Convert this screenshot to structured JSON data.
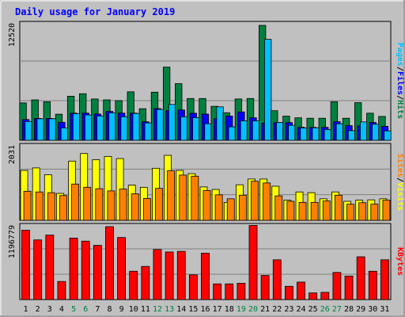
{
  "chart_data": [
    {
      "type": "bar",
      "panel": "top",
      "title": "Daily usage for January 2019",
      "ylabel_max": "12520",
      "categories": [
        "1",
        "2",
        "3",
        "4",
        "5",
        "6",
        "7",
        "8",
        "9",
        "10",
        "11",
        "12",
        "13",
        "14",
        "15",
        "16",
        "17",
        "18",
        "19",
        "20",
        "21",
        "22",
        "23",
        "24",
        "25",
        "26",
        "27",
        "28",
        "29",
        "30",
        "31"
      ],
      "weekend_days": [
        "5",
        "6",
        "12",
        "13",
        "19",
        "20",
        "26",
        "27"
      ],
      "ylim": [
        0,
        12520
      ],
      "series": [
        {
          "name": "Hits",
          "color": "#008040",
          "values": [
            4070,
            4400,
            4200,
            2840,
            4800,
            5070,
            4500,
            4400,
            4320,
            5280,
            3440,
            5240,
            7970,
            6170,
            4550,
            4550,
            3700,
            3000,
            4500,
            4550,
            12520,
            3220,
            2630,
            2450,
            2400,
            2400,
            4200,
            2400,
            4100,
            2950,
            2600
          ]
        },
        {
          "name": "Files",
          "color": "#0000ff",
          "values": [
            2260,
            2380,
            2380,
            1960,
            2960,
            2960,
            2860,
            3150,
            2960,
            2960,
            2020,
            3450,
            3240,
            3300,
            2940,
            2850,
            2350,
            2640,
            3090,
            2450,
            1880,
            1930,
            1930,
            1420,
            1410,
            1410,
            2030,
            1600,
            1580,
            1940,
            1520
          ]
        },
        {
          "name": "Pages",
          "color": "#00c0ff",
          "values": [
            2050,
            2340,
            2340,
            1350,
            2900,
            2760,
            2650,
            2990,
            2570,
            2920,
            1890,
            3360,
            3900,
            2560,
            2470,
            1800,
            3640,
            1460,
            2120,
            2120,
            11000,
            1950,
            1630,
            1340,
            1360,
            1170,
            1800,
            1050,
            2000,
            1750,
            1020
          ]
        }
      ]
    },
    {
      "type": "bar",
      "panel": "middle",
      "ylabel_max": "2031",
      "categories": [
        "1",
        "2",
        "3",
        "4",
        "5",
        "6",
        "7",
        "8",
        "9",
        "10",
        "11",
        "12",
        "13",
        "14",
        "15",
        "16",
        "17",
        "18",
        "19",
        "20",
        "21",
        "22",
        "23",
        "24",
        "25",
        "26",
        "27",
        "28",
        "29",
        "30",
        "31"
      ],
      "ylim": [
        0,
        2031
      ],
      "series": [
        {
          "name": "Visits",
          "color": "#ffff00",
          "values": [
            1390,
            1460,
            1270,
            750,
            1650,
            1860,
            1690,
            1780,
            1720,
            980,
            920,
            1450,
            1810,
            1390,
            1300,
            930,
            860,
            500,
            990,
            1150,
            1150,
            950,
            560,
            790,
            770,
            600,
            790,
            530,
            560,
            570,
            600
          ]
        },
        {
          "name": "Sites",
          "color": "#ff8000",
          "values": [
            810,
            790,
            770,
            690,
            1010,
            920,
            880,
            820,
            870,
            740,
            610,
            890,
            1380,
            1260,
            1230,
            830,
            710,
            600,
            700,
            1090,
            1040,
            680,
            530,
            500,
            500,
            540,
            700,
            450,
            490,
            450,
            560
          ]
        }
      ]
    },
    {
      "type": "bar",
      "panel": "bottom",
      "ylabel_max": "1196779",
      "categories": [
        "1",
        "2",
        "3",
        "4",
        "5",
        "6",
        "7",
        "8",
        "9",
        "10",
        "11",
        "12",
        "13",
        "14",
        "15",
        "16",
        "17",
        "18",
        "19",
        "20",
        "21",
        "22",
        "23",
        "24",
        "25",
        "26",
        "27",
        "28",
        "29",
        "30",
        "31"
      ],
      "ylim": [
        0,
        1196779
      ],
      "series": [
        {
          "name": "KBytes",
          "color": "#ff0000",
          "values": [
            1150000,
            990000,
            1070000,
            300000,
            1020000,
            970000,
            900000,
            1210000,
            1030000,
            470000,
            550000,
            830000,
            790000,
            800000,
            410000,
            770000,
            260000,
            260000,
            270000,
            1230000,
            400000,
            660000,
            220000,
            290000,
            110000,
            120000,
            450000,
            390000,
            710000,
            470000,
            660000
          ]
        }
      ]
    }
  ],
  "legend": {
    "top": [
      {
        "text": "Pages",
        "color": "#00c0ff"
      },
      {
        "text": "/",
        "color": "#000000"
      },
      {
        "text": "Files",
        "color": "#0000ff"
      },
      {
        "text": "/",
        "color": "#000000"
      },
      {
        "text": "Hits",
        "color": "#008040"
      }
    ],
    "middle": [
      {
        "text": "Sites",
        "color": "#ff8000"
      },
      {
        "text": "/",
        "color": "#000000"
      },
      {
        "text": "Visits",
        "color": "#ffff00"
      }
    ],
    "bottom": [
      {
        "text": "KBytes",
        "color": "#ff0000"
      }
    ]
  },
  "colors": {
    "title": "#0000ff",
    "frame_bg": "#c0c0c0",
    "plot_bg": "#c0c0c0",
    "weekday_label": "#000000",
    "weekend_label": "#008040"
  }
}
